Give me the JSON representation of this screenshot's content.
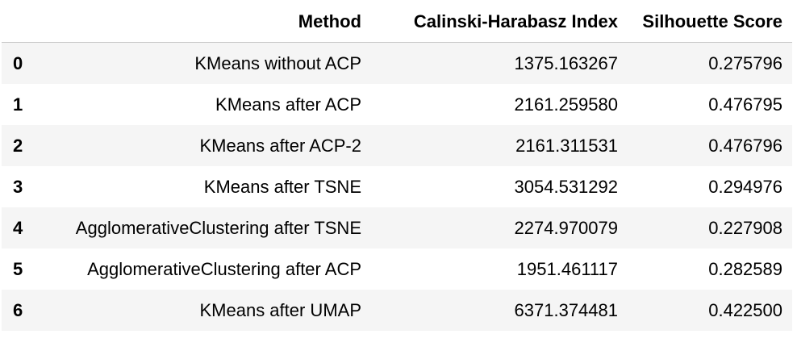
{
  "table": {
    "columns": {
      "index": "",
      "method": "Method",
      "ch": "Calinski-Harabasz Index",
      "silhouette": "Silhouette Score"
    },
    "rows": [
      {
        "index": "0",
        "method": "KMeans without ACP",
        "ch": "1375.163267",
        "silhouette": "0.275796"
      },
      {
        "index": "1",
        "method": "KMeans after ACP",
        "ch": "2161.259580",
        "silhouette": "0.476795"
      },
      {
        "index": "2",
        "method": "KMeans after ACP-2",
        "ch": "2161.311531",
        "silhouette": "0.476796"
      },
      {
        "index": "3",
        "method": "KMeans after TSNE",
        "ch": "3054.531292",
        "silhouette": "0.294976"
      },
      {
        "index": "4",
        "method": "AgglomerativeClustering after TSNE",
        "ch": "2274.970079",
        "silhouette": "0.227908"
      },
      {
        "index": "5",
        "method": "AgglomerativeClustering after ACP",
        "ch": "1951.461117",
        "silhouette": "0.282589"
      },
      {
        "index": "6",
        "method": "KMeans after UMAP",
        "ch": "6371.374481",
        "silhouette": "0.422500"
      }
    ]
  }
}
